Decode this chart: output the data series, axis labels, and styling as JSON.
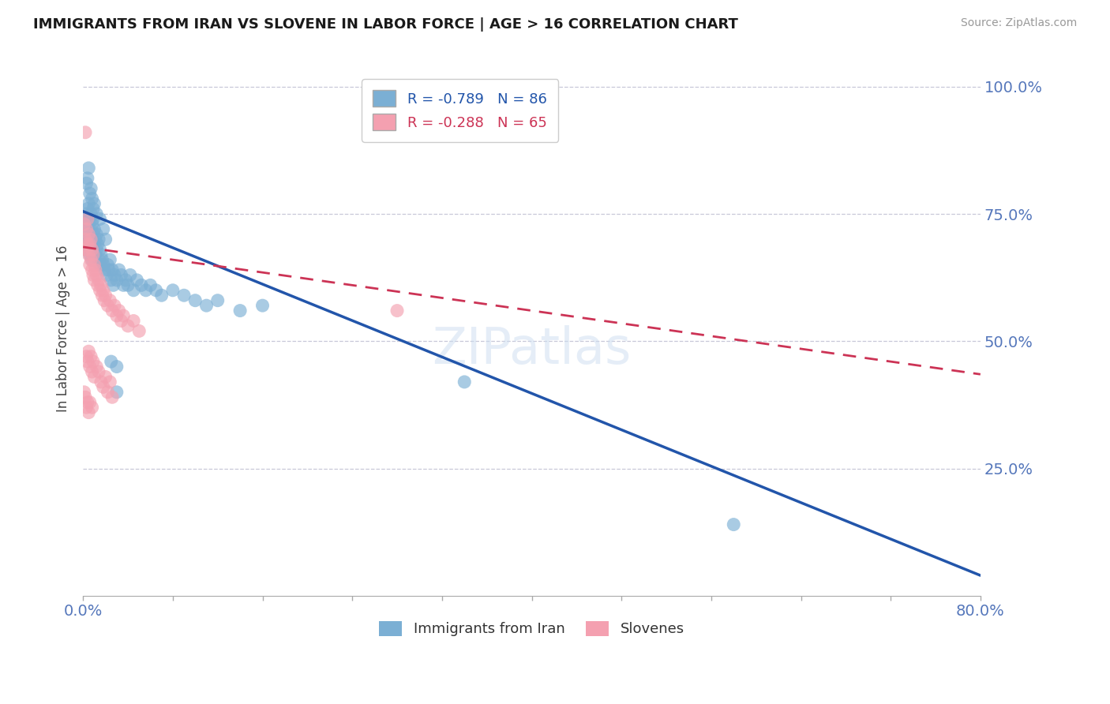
{
  "title": "IMMIGRANTS FROM IRAN VS SLOVENE IN LABOR FORCE | AGE > 16 CORRELATION CHART",
  "source": "Source: ZipAtlas.com",
  "ylabel": "In Labor Force | Age > 16",
  "xlim": [
    0.0,
    0.8
  ],
  "ylim": [
    0.0,
    1.05
  ],
  "xticks": [
    0.0,
    0.08,
    0.16,
    0.24,
    0.32,
    0.4,
    0.48,
    0.56,
    0.64,
    0.72,
    0.8
  ],
  "ytick_positions": [
    0.25,
    0.5,
    0.75,
    1.0
  ],
  "yticklabels": [
    "25.0%",
    "50.0%",
    "75.0%",
    "100.0%"
  ],
  "iran_color": "#7bafd4",
  "slovene_color": "#f4a0b0",
  "iran_line_color": "#2255aa",
  "slovene_line_color": "#cc3355",
  "iran_R": -0.789,
  "iran_N": 86,
  "slovene_R": -0.288,
  "slovene_N": 65,
  "watermark": "ZIPatlas",
  "grid_color": "#c8c8d8",
  "background_color": "#ffffff",
  "iran_line_x0": 0.0,
  "iran_line_y0": 0.755,
  "iran_line_x1": 0.8,
  "iran_line_y1": 0.04,
  "slovene_line_x0": 0.0,
  "slovene_line_y0": 0.685,
  "slovene_line_x1": 0.8,
  "slovene_line_y1": 0.435,
  "iran_scatter": [
    [
      0.001,
      0.74
    ],
    [
      0.001,
      0.72
    ],
    [
      0.002,
      0.73
    ],
    [
      0.002,
      0.71
    ],
    [
      0.002,
      0.69
    ],
    [
      0.003,
      0.75
    ],
    [
      0.003,
      0.7
    ],
    [
      0.003,
      0.68
    ],
    [
      0.004,
      0.76
    ],
    [
      0.004,
      0.72
    ],
    [
      0.004,
      0.68
    ],
    [
      0.005,
      0.77
    ],
    [
      0.005,
      0.73
    ],
    [
      0.005,
      0.69
    ],
    [
      0.006,
      0.74
    ],
    [
      0.006,
      0.71
    ],
    [
      0.006,
      0.67
    ],
    [
      0.007,
      0.75
    ],
    [
      0.007,
      0.72
    ],
    [
      0.007,
      0.68
    ],
    [
      0.008,
      0.73
    ],
    [
      0.008,
      0.7
    ],
    [
      0.008,
      0.66
    ],
    [
      0.009,
      0.74
    ],
    [
      0.009,
      0.71
    ],
    [
      0.01,
      0.72
    ],
    [
      0.01,
      0.69
    ],
    [
      0.011,
      0.7
    ],
    [
      0.011,
      0.67
    ],
    [
      0.012,
      0.71
    ],
    [
      0.012,
      0.68
    ],
    [
      0.013,
      0.69
    ],
    [
      0.014,
      0.7
    ],
    [
      0.014,
      0.66
    ],
    [
      0.015,
      0.68
    ],
    [
      0.015,
      0.65
    ],
    [
      0.016,
      0.67
    ],
    [
      0.017,
      0.66
    ],
    [
      0.018,
      0.65
    ],
    [
      0.019,
      0.64
    ],
    [
      0.02,
      0.7
    ],
    [
      0.021,
      0.63
    ],
    [
      0.022,
      0.65
    ],
    [
      0.023,
      0.64
    ],
    [
      0.024,
      0.66
    ],
    [
      0.025,
      0.62
    ],
    [
      0.026,
      0.64
    ],
    [
      0.027,
      0.61
    ],
    [
      0.028,
      0.63
    ],
    [
      0.03,
      0.62
    ],
    [
      0.032,
      0.64
    ],
    [
      0.034,
      0.63
    ],
    [
      0.036,
      0.61
    ],
    [
      0.038,
      0.62
    ],
    [
      0.04,
      0.61
    ],
    [
      0.042,
      0.63
    ],
    [
      0.045,
      0.6
    ],
    [
      0.048,
      0.62
    ],
    [
      0.052,
      0.61
    ],
    [
      0.056,
      0.6
    ],
    [
      0.06,
      0.61
    ],
    [
      0.065,
      0.6
    ],
    [
      0.07,
      0.59
    ],
    [
      0.08,
      0.6
    ],
    [
      0.09,
      0.59
    ],
    [
      0.1,
      0.58
    ],
    [
      0.11,
      0.57
    ],
    [
      0.12,
      0.58
    ],
    [
      0.14,
      0.56
    ],
    [
      0.16,
      0.57
    ],
    [
      0.005,
      0.84
    ],
    [
      0.007,
      0.8
    ],
    [
      0.004,
      0.82
    ],
    [
      0.006,
      0.79
    ],
    [
      0.003,
      0.81
    ],
    [
      0.008,
      0.78
    ],
    [
      0.009,
      0.76
    ],
    [
      0.01,
      0.77
    ],
    [
      0.012,
      0.75
    ],
    [
      0.015,
      0.74
    ],
    [
      0.018,
      0.72
    ],
    [
      0.025,
      0.46
    ],
    [
      0.03,
      0.45
    ],
    [
      0.58,
      0.14
    ],
    [
      0.34,
      0.42
    ],
    [
      0.03,
      0.4
    ]
  ],
  "slovene_scatter": [
    [
      0.001,
      0.73
    ],
    [
      0.001,
      0.68
    ],
    [
      0.002,
      0.91
    ],
    [
      0.002,
      0.7
    ],
    [
      0.003,
      0.72
    ],
    [
      0.003,
      0.68
    ],
    [
      0.004,
      0.74
    ],
    [
      0.004,
      0.69
    ],
    [
      0.005,
      0.71
    ],
    [
      0.005,
      0.67
    ],
    [
      0.006,
      0.69
    ],
    [
      0.006,
      0.65
    ],
    [
      0.007,
      0.7
    ],
    [
      0.007,
      0.66
    ],
    [
      0.008,
      0.68
    ],
    [
      0.008,
      0.64
    ],
    [
      0.009,
      0.67
    ],
    [
      0.009,
      0.63
    ],
    [
      0.01,
      0.65
    ],
    [
      0.01,
      0.62
    ],
    [
      0.011,
      0.64
    ],
    [
      0.012,
      0.63
    ],
    [
      0.013,
      0.61
    ],
    [
      0.014,
      0.62
    ],
    [
      0.015,
      0.6
    ],
    [
      0.016,
      0.61
    ],
    [
      0.017,
      0.59
    ],
    [
      0.018,
      0.6
    ],
    [
      0.019,
      0.58
    ],
    [
      0.02,
      0.59
    ],
    [
      0.022,
      0.57
    ],
    [
      0.024,
      0.58
    ],
    [
      0.026,
      0.56
    ],
    [
      0.028,
      0.57
    ],
    [
      0.03,
      0.55
    ],
    [
      0.032,
      0.56
    ],
    [
      0.034,
      0.54
    ],
    [
      0.036,
      0.55
    ],
    [
      0.04,
      0.53
    ],
    [
      0.045,
      0.54
    ],
    [
      0.05,
      0.52
    ],
    [
      0.003,
      0.47
    ],
    [
      0.004,
      0.46
    ],
    [
      0.005,
      0.48
    ],
    [
      0.006,
      0.45
    ],
    [
      0.007,
      0.47
    ],
    [
      0.008,
      0.44
    ],
    [
      0.009,
      0.46
    ],
    [
      0.01,
      0.43
    ],
    [
      0.012,
      0.45
    ],
    [
      0.014,
      0.44
    ],
    [
      0.016,
      0.42
    ],
    [
      0.018,
      0.41
    ],
    [
      0.02,
      0.43
    ],
    [
      0.022,
      0.4
    ],
    [
      0.024,
      0.42
    ],
    [
      0.026,
      0.39
    ],
    [
      0.002,
      0.39
    ],
    [
      0.003,
      0.37
    ],
    [
      0.004,
      0.38
    ],
    [
      0.005,
      0.36
    ],
    [
      0.001,
      0.4
    ],
    [
      0.006,
      0.38
    ],
    [
      0.008,
      0.37
    ],
    [
      0.28,
      0.56
    ]
  ]
}
